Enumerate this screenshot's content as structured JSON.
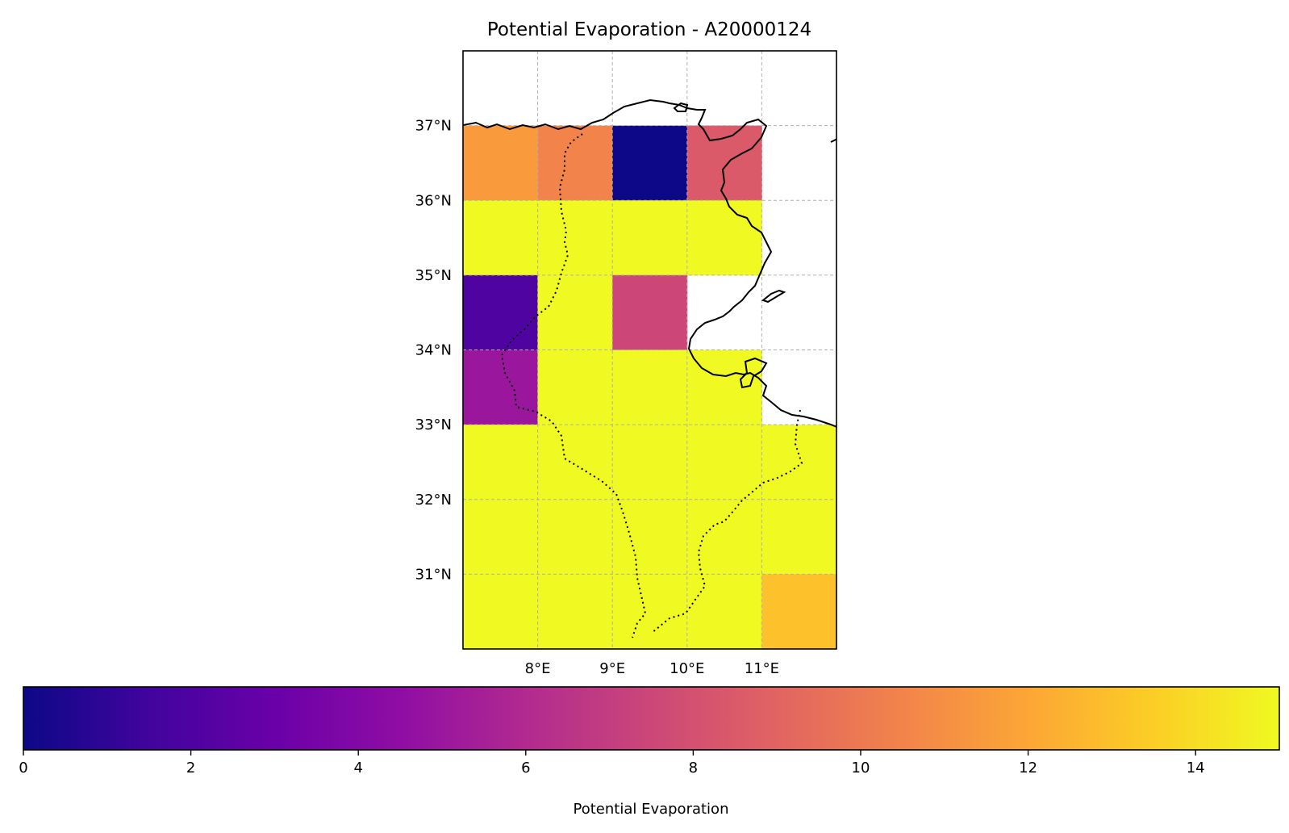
{
  "chart_data": {
    "type": "heatmap",
    "title": "Potential Evaporation - A20000124",
    "x": [
      7.5,
      8.5,
      9.5,
      10.5,
      11.5
    ],
    "y": [
      36.5,
      35.5,
      34.5,
      33.5,
      32.5,
      31.5,
      30.5
    ],
    "x_ticks": [
      8,
      9,
      10,
      11
    ],
    "x_tick_labels": [
      "8°E",
      "9°E",
      "10°E",
      "11°E"
    ],
    "y_ticks": [
      37,
      36,
      35,
      34,
      33,
      32,
      31
    ],
    "y_tick_labels": [
      "37°N",
      "36°N",
      "35°N",
      "34°N",
      "33°N",
      "32°N",
      "31°N"
    ],
    "xlim": [
      7.0,
      12.0
    ],
    "ylim": [
      30.0,
      38.0
    ],
    "grid": true,
    "values": [
      [
        11.5,
        10.5,
        0.0,
        8.5,
        null
      ],
      [
        15.0,
        15.0,
        15.0,
        15.0,
        null
      ],
      [
        2.0,
        15.0,
        7.5,
        null,
        null
      ],
      [
        5.0,
        15.0,
        15.0,
        15.0,
        null
      ],
      [
        15.0,
        15.0,
        15.0,
        15.0,
        15.0
      ],
      [
        15.0,
        15.0,
        15.0,
        15.0,
        15.0
      ],
      [
        15.0,
        15.0,
        15.0,
        15.0,
        13.0
      ]
    ],
    "colorbar": {
      "label": "Potential Evaporation",
      "min": 0,
      "max": 15,
      "ticks": [
        0,
        2,
        4,
        6,
        8,
        10,
        12,
        14
      ],
      "tick_labels": [
        "0",
        "2",
        "4",
        "6",
        "8",
        "10",
        "12",
        "14"
      ],
      "colormap": "plasma",
      "orientation": "horizontal"
    }
  }
}
